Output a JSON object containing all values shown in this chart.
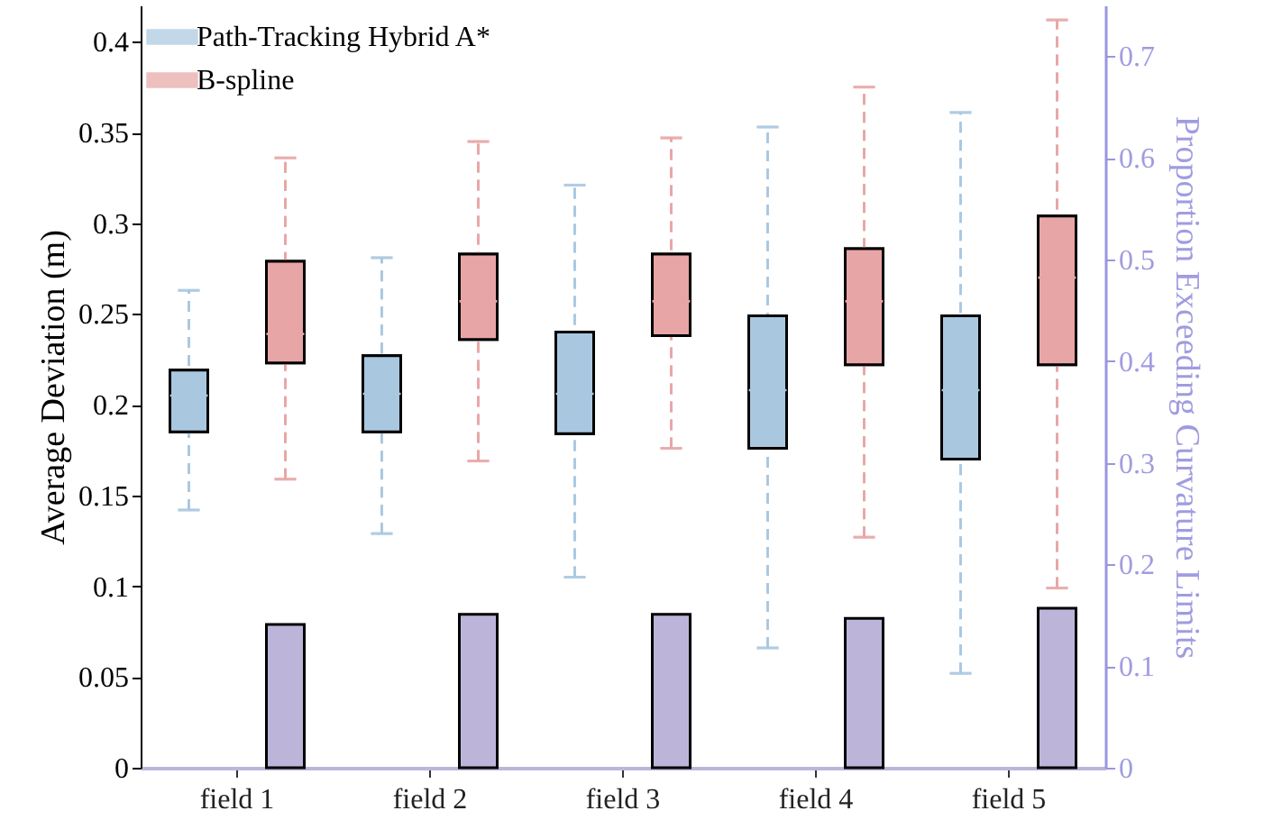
{
  "chart_data": {
    "type": "box",
    "ylabel": "Average  Deviation (m)",
    "y2label": "Proportion Exceeding Curvature Limits",
    "categories": [
      "field 1",
      "field 2",
      "field 3",
      "field 4",
      "field 5"
    ],
    "ylim": [
      0,
      0.42
    ],
    "yticks": [
      0,
      0.05,
      0.1,
      0.15,
      0.2,
      0.25,
      0.3,
      0.35,
      0.4
    ],
    "y2lim": [
      0,
      0.75
    ],
    "y2ticks": [
      0,
      0.1,
      0.2,
      0.3,
      0.4,
      0.5,
      0.6,
      0.7
    ],
    "legend": "top left",
    "series": [
      {
        "name": "Path-Tracking Hybrid A*",
        "color": "#a9c8e0",
        "boxes": [
          {
            "low": 0.142,
            "q1": 0.185,
            "median": 0.205,
            "q3": 0.219,
            "high": 0.263
          },
          {
            "low": 0.129,
            "q1": 0.185,
            "median": 0.206,
            "q3": 0.227,
            "high": 0.281
          },
          {
            "low": 0.105,
            "q1": 0.184,
            "median": 0.206,
            "q3": 0.24,
            "high": 0.321
          },
          {
            "low": 0.066,
            "q1": 0.176,
            "median": 0.208,
            "q3": 0.249,
            "high": 0.353
          },
          {
            "low": 0.052,
            "q1": 0.17,
            "median": 0.208,
            "q3": 0.249,
            "high": 0.361
          }
        ]
      },
      {
        "name": "B-spline",
        "color": "#e8a5a5",
        "boxes": [
          {
            "low": 0.159,
            "q1": 0.223,
            "median": 0.239,
            "q3": 0.279,
            "high": 0.336
          },
          {
            "low": 0.169,
            "q1": 0.236,
            "median": 0.257,
            "q3": 0.283,
            "high": 0.345
          },
          {
            "low": 0.176,
            "q1": 0.238,
            "median": 0.257,
            "q3": 0.283,
            "high": 0.347
          },
          {
            "low": 0.127,
            "q1": 0.222,
            "median": 0.257,
            "q3": 0.286,
            "high": 0.375
          },
          {
            "low": 0.099,
            "q1": 0.222,
            "median": 0.27,
            "q3": 0.304,
            "high": 0.412
          }
        ]
      },
      {
        "type": "bar",
        "axis": "y2",
        "color": "#bdb5d9",
        "values": [
          0.141,
          0.151,
          0.151,
          0.147,
          0.157
        ]
      }
    ]
  }
}
